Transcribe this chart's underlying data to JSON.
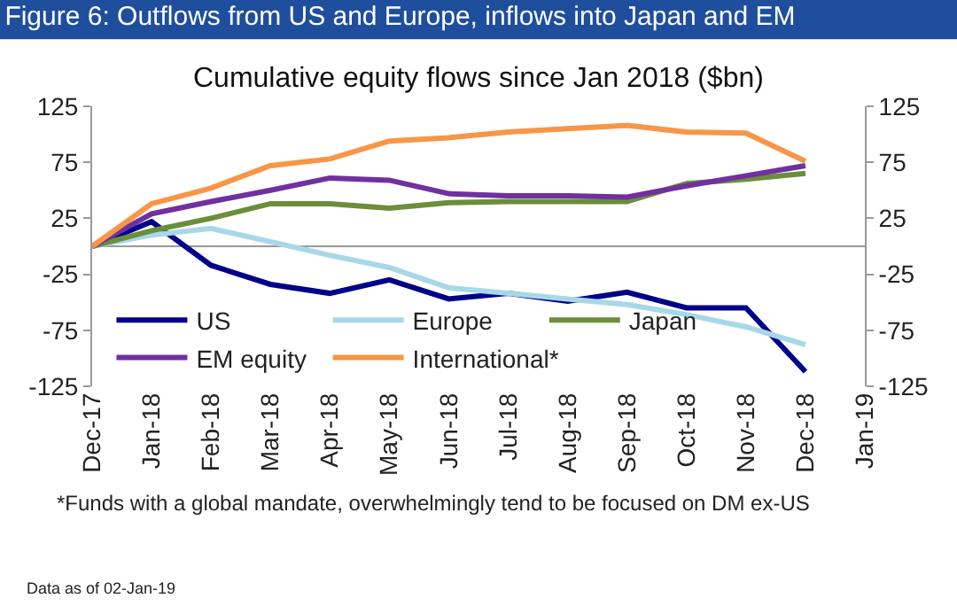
{
  "chart_data": {
    "type": "line",
    "title": "Figure 6: Outflows from US and Europe, inflows into Japan and EM",
    "subtitle": "Cumulative equity flows since Jan 2018 ($bn)",
    "categories": [
      "Dec-17",
      "Jan-18",
      "Feb-18",
      "Mar-18",
      "Apr-18",
      "May-18",
      "Jun-18",
      "Jul-18",
      "Aug-18",
      "Sep-18",
      "Oct-18",
      "Nov-18",
      "Dec-18",
      "Jan-19"
    ],
    "series": [
      {
        "name": "US",
        "color": "#00008b",
        "values": [
          0,
          22,
          -17,
          -34,
          -42,
          -30,
          -47,
          -42,
          -49,
          -41,
          -55,
          -55,
          -112,
          null
        ]
      },
      {
        "name": "Europe",
        "color": "#a8d8e8",
        "values": [
          0,
          10,
          16,
          4,
          -8,
          -19,
          -37,
          -42,
          -47,
          -52,
          -61,
          -72,
          -88,
          null
        ]
      },
      {
        "name": "Japan",
        "color": "#6b8e3a",
        "values": [
          0,
          14,
          25,
          38,
          38,
          34,
          39,
          40,
          40,
          40,
          56,
          60,
          65,
          null
        ]
      },
      {
        "name": "EM equity",
        "color": "#7030a0",
        "values": [
          0,
          29,
          40,
          50,
          61,
          59,
          47,
          45,
          45,
          44,
          54,
          63,
          72,
          null
        ]
      },
      {
        "name": "International*",
        "color": "#f79646",
        "values": [
          0,
          38,
          52,
          72,
          78,
          94,
          97,
          102,
          105,
          108,
          102,
          101,
          76,
          null
        ]
      }
    ],
    "ylim": [
      -125,
      125
    ],
    "yticks": [
      -125,
      -75,
      -25,
      25,
      75,
      125
    ],
    "y2lim": [
      -125,
      125
    ],
    "y2ticks": [
      -125,
      -75,
      -25,
      25,
      75,
      125
    ],
    "grid": false,
    "legend": "bottom left",
    "marker": "none",
    "line_style": "solid",
    "annotations": [
      "*Funds with a global mandate, overwhelmingly tend to be focused on DM ex-US",
      "Data as of 02-Jan-19"
    ]
  }
}
